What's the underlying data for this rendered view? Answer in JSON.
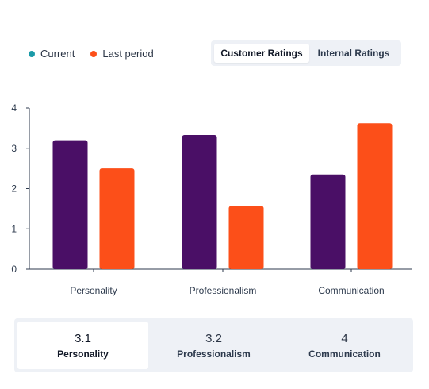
{
  "legend": {
    "current_label": "Current",
    "last_label": "Last period"
  },
  "tabs": [
    {
      "label": "Customer Ratings",
      "active": true
    },
    {
      "label": "Internal Ratings",
      "active": false
    }
  ],
  "colors": {
    "current": "#4a0f66",
    "last": "#fc4f19",
    "legend_current_dot": "#1a9aa8",
    "legend_last_dot": "#fc4f19",
    "axis": "#2d3a4d",
    "panel_bg": "#eef1f6"
  },
  "chart_data": {
    "type": "bar",
    "categories": [
      "Personality",
      "Professionalism",
      "Communication"
    ],
    "series": [
      {
        "name": "Current",
        "values": [
          3.2,
          3.33,
          2.35
        ]
      },
      {
        "name": "Last period",
        "values": [
          2.5,
          1.57,
          3.62
        ]
      }
    ],
    "yticks": [
      "0",
      "1",
      "2",
      "3",
      "4"
    ],
    "ylim": [
      0,
      4
    ],
    "grid": false,
    "legend_position": "top-left"
  },
  "summary": [
    {
      "value": "3.1",
      "label": "Personality",
      "active": true
    },
    {
      "value": "3.2",
      "label": "Professionalism",
      "active": false
    },
    {
      "value": "4",
      "label": "Communication",
      "active": false
    }
  ]
}
